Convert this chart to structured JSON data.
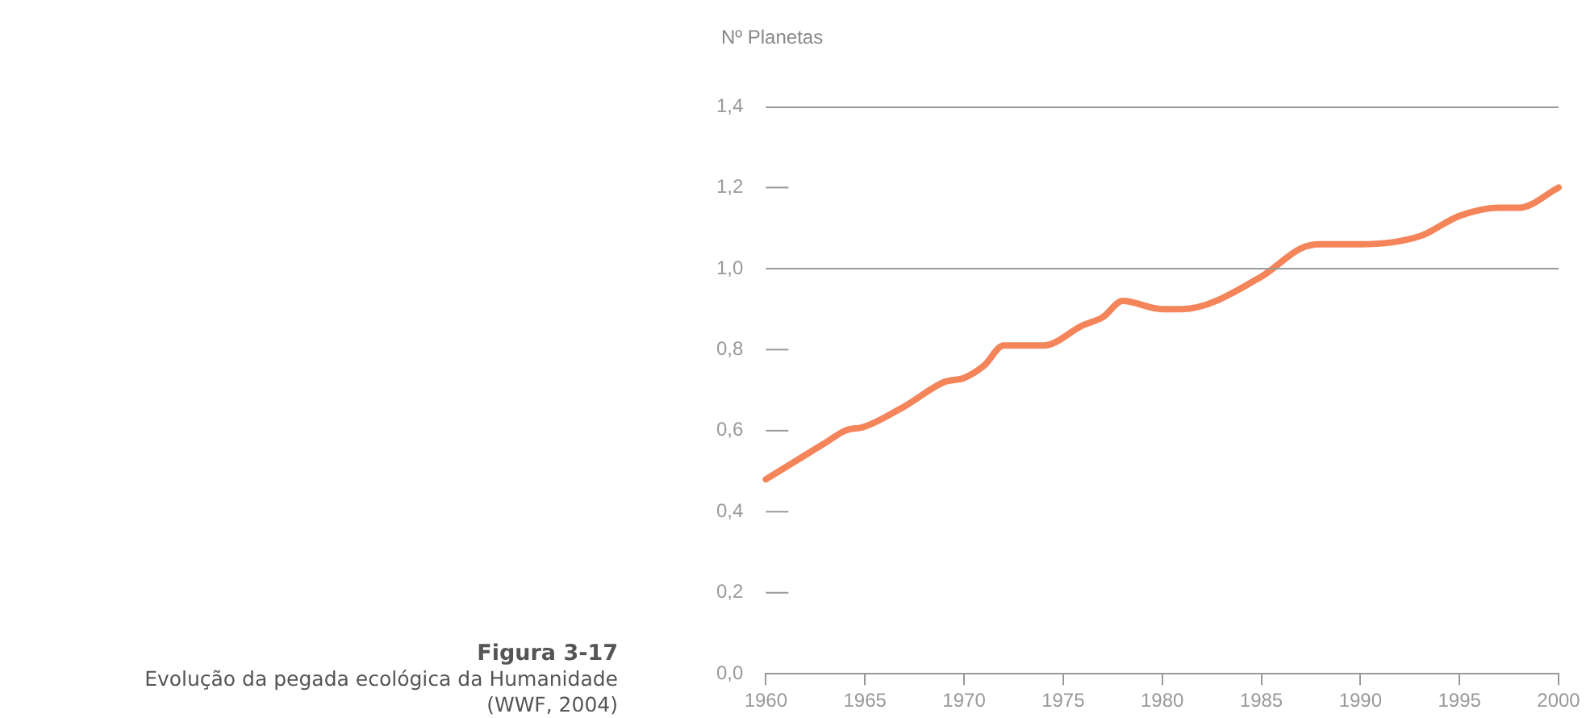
{
  "chart_data": {
    "type": "line",
    "title": "Figura 3-17",
    "subtitle": "Evolução da pegada ecológica da Humanidade",
    "annotations": [
      "(WWF, 2004)"
    ],
    "ylabel": "Nº Planetas",
    "x": [
      1960,
      1962,
      1963,
      1964,
      1965,
      1967,
      1969,
      1970,
      1971,
      1972,
      1974,
      1976,
      1977,
      1978,
      1980,
      1981,
      1985,
      1987,
      1988,
      1990,
      1993,
      1995,
      1997,
      1998,
      2000
    ],
    "series": [
      {
        "color": "#f4845a",
        "values": [
          0.48,
          0.54,
          0.57,
          0.6,
          0.61,
          0.66,
          0.72,
          0.73,
          0.76,
          0.81,
          0.81,
          0.86,
          0.88,
          0.92,
          0.9,
          0.9,
          0.98,
          1.05,
          1.06,
          1.06,
          1.08,
          1.13,
          1.15,
          1.15,
          1.2
        ]
      }
    ],
    "xlim": [
      1960,
      2000
    ],
    "xticks": [
      1960,
      1965,
      1970,
      1975,
      1980,
      1985,
      1990,
      1995,
      2000
    ],
    "ylim": [
      0,
      1.4
    ],
    "yticks": [
      {
        "value": 0,
        "label": "0,0"
      },
      {
        "value": 0.2,
        "label": "0,2"
      },
      {
        "value": 0.4,
        "label": "0,4"
      },
      {
        "value": 0.6,
        "label": "0,6"
      },
      {
        "value": 0.8,
        "label": "0,8"
      },
      {
        "value": 1,
        "label": "1,0"
      },
      {
        "value": 1.2,
        "label": "1,2"
      },
      {
        "value": 1.4,
        "label": "1,4"
      }
    ],
    "ref_lines": [
      {
        "axis": "y",
        "value": 1,
        "color": "#999999"
      }
    ],
    "grid": false,
    "legend": false,
    "marker": "none",
    "line_style": "solid"
  }
}
